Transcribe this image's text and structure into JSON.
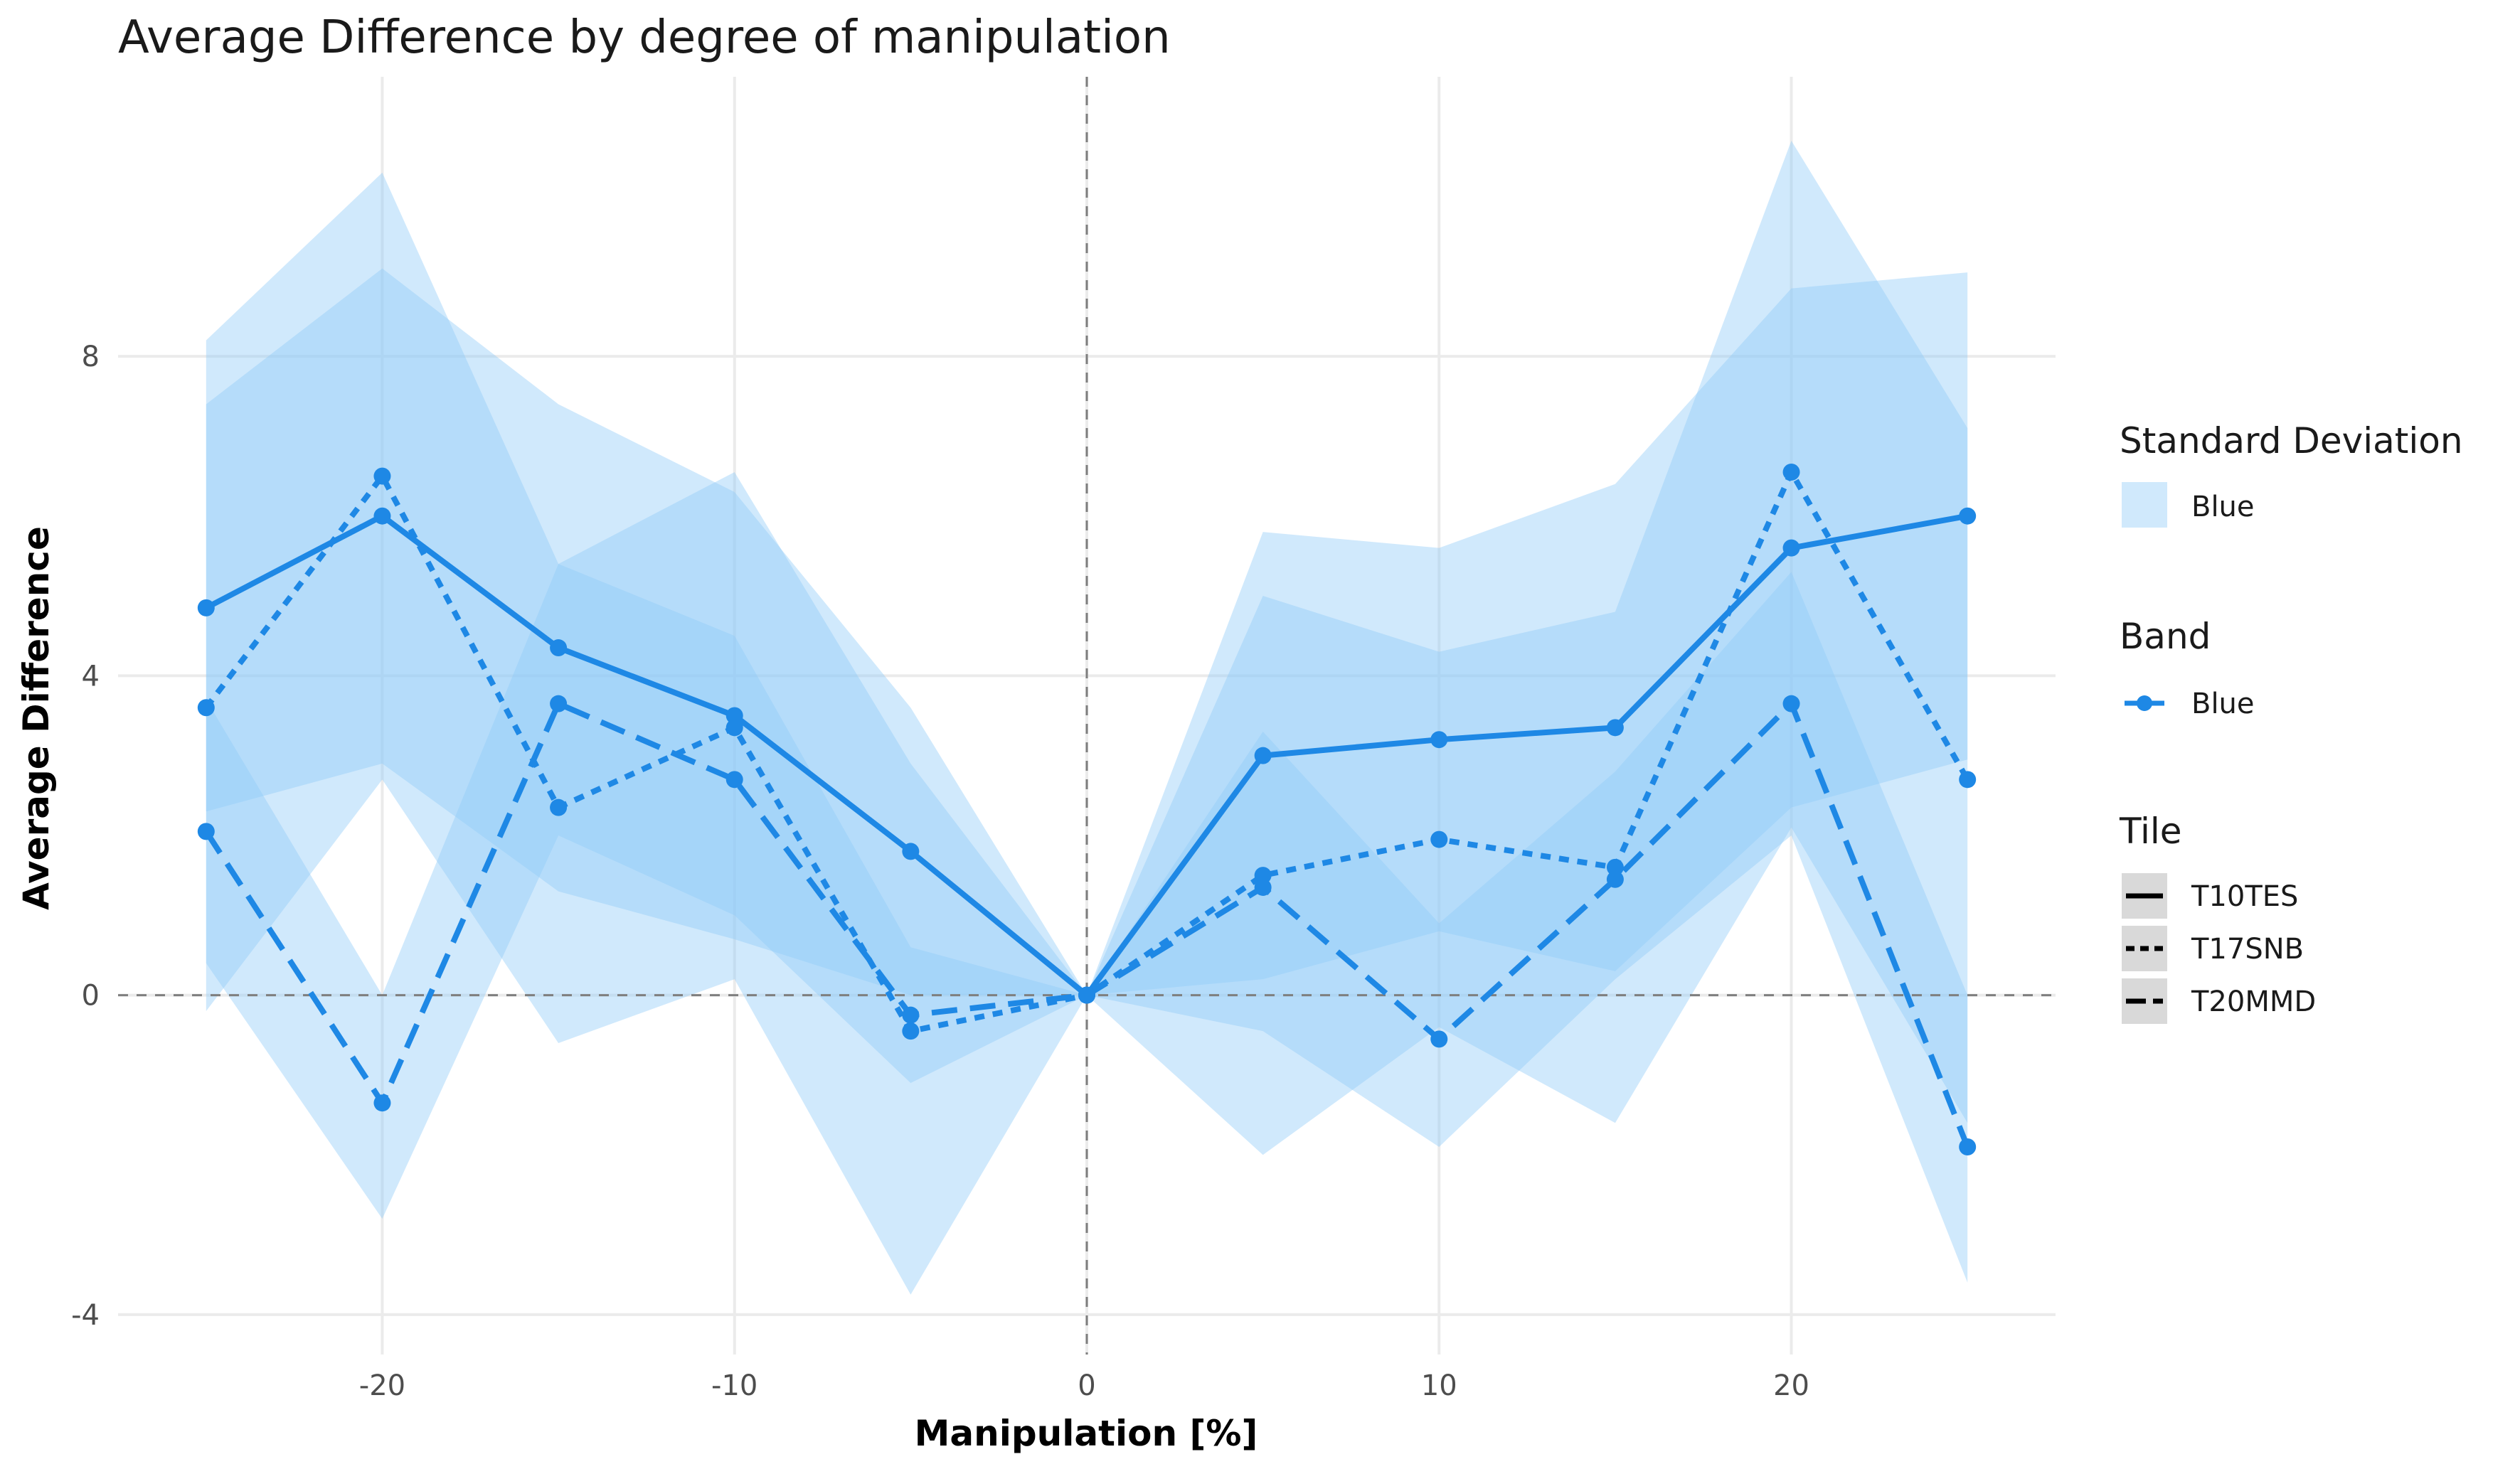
{
  "chart_data": {
    "type": "line",
    "title": "Average Difference by degree of manipulation",
    "xlabel": "Manipulation [%]",
    "ylabel": "Average Difference",
    "xlim": [
      -27.5,
      27.5
    ],
    "ylim": [
      -4.5,
      11.5
    ],
    "x_ticks": [
      -20,
      -10,
      0,
      10,
      20
    ],
    "y_ticks": [
      -4,
      0,
      4,
      8
    ],
    "reference_lines": {
      "x": 0,
      "y": 0
    },
    "grid": true,
    "x": [
      -25,
      -20,
      -15,
      -10,
      -5,
      0,
      5,
      10,
      15,
      20,
      25
    ],
    "band_color": "#1e88e5",
    "sd_fill_color": "#90caf9",
    "series": [
      {
        "tile": "T10TES",
        "dash": "solid",
        "values": [
          4.85,
          6.0,
          4.35,
          3.5,
          1.8,
          0.0,
          3.0,
          3.2,
          3.35,
          5.6,
          6.0
        ],
        "sd_upper": [
          7.4,
          9.1,
          7.4,
          6.3,
          3.6,
          0.0,
          5.8,
          5.6,
          6.4,
          8.85,
          9.05
        ],
        "sd_lower": [
          2.3,
          2.9,
          1.3,
          0.7,
          0.0,
          0.0,
          0.2,
          0.8,
          0.3,
          2.35,
          2.95
        ]
      },
      {
        "tile": "T17SNB",
        "dash": "dotted",
        "values": [
          3.6,
          6.5,
          2.35,
          3.35,
          -0.45,
          0.0,
          1.5,
          1.95,
          1.6,
          6.55,
          2.7
        ],
        "sd_upper": [
          8.2,
          10.3,
          5.4,
          6.55,
          2.9,
          0.0,
          5.0,
          4.3,
          4.8,
          10.7,
          7.1
        ],
        "sd_lower": [
          -0.2,
          2.7,
          -0.6,
          0.2,
          -3.75,
          0.0,
          -2.0,
          -0.4,
          -1.6,
          2.1,
          -1.6
        ]
      },
      {
        "tile": "T20MMD",
        "dash": "dashed",
        "values": [
          2.05,
          -1.35,
          3.65,
          2.7,
          -0.25,
          0.0,
          1.35,
          -0.55,
          1.45,
          3.65,
          -1.9
        ],
        "sd_upper": [
          3.7,
          0.0,
          5.4,
          4.5,
          0.6,
          0.0,
          3.3,
          0.9,
          2.8,
          5.3,
          0.0
        ],
        "sd_lower": [
          0.4,
          -2.8,
          2.0,
          1.0,
          -1.1,
          0.0,
          -0.45,
          -1.9,
          0.2,
          2.0,
          -3.6
        ]
      }
    ],
    "legend": {
      "placement": "right",
      "sd": {
        "title": "Standard Deviation",
        "label": "Blue"
      },
      "band": {
        "title": "Band",
        "label": "Blue"
      },
      "tile": {
        "title": "Tile",
        "labels": [
          "T10TES",
          "T17SNB",
          "T20MMD"
        ]
      }
    }
  }
}
